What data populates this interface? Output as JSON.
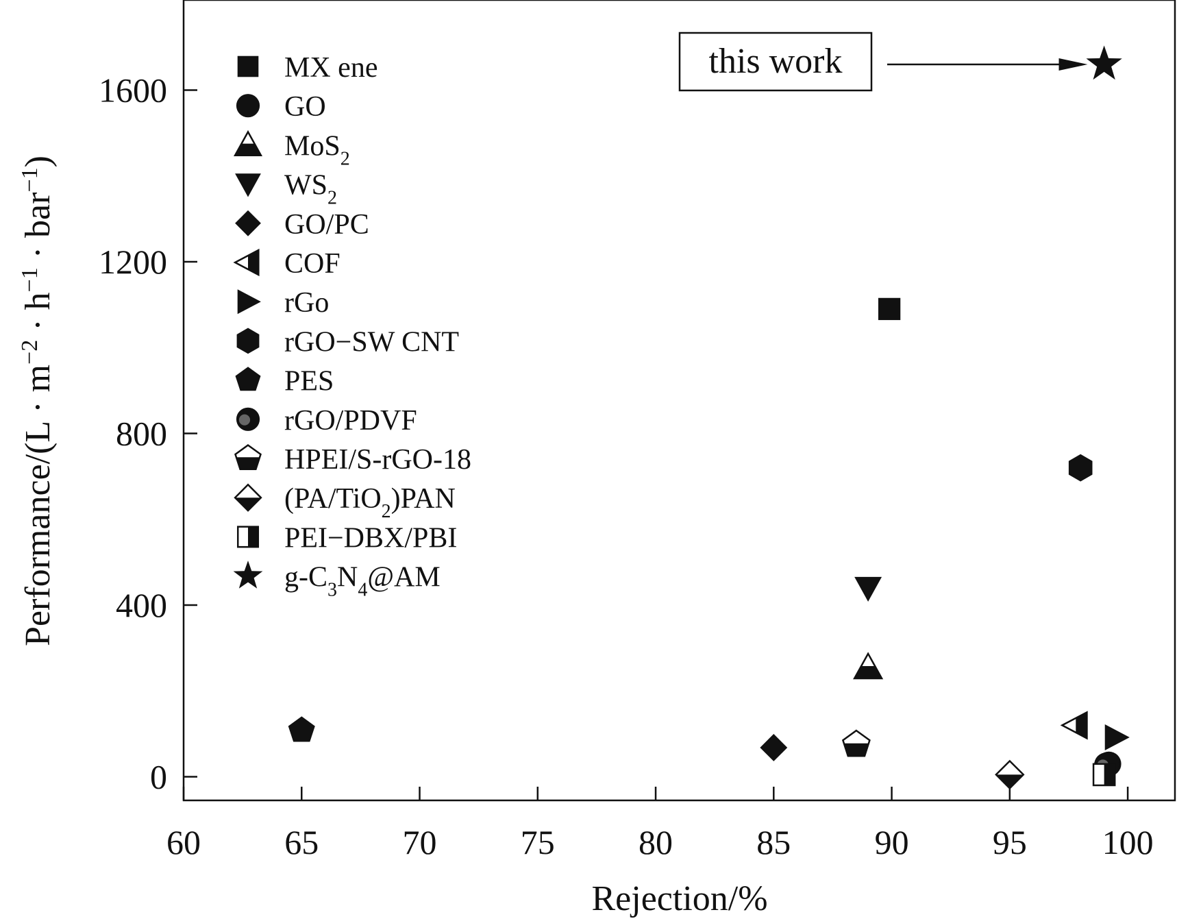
{
  "chart_data": {
    "type": "scatter",
    "xlabel": "Rejection/%",
    "ylabel": "Performance/(L · m−2 · h−1 · bar−1)",
    "ylabel_parts": {
      "a": "Performance/(L · m",
      "b": "−2",
      "c": " · h",
      "d": "−1",
      "e": " · bar",
      "f": "−1",
      "g": ")"
    },
    "xlim": [
      60,
      102
    ],
    "ylim": [
      -55,
      1810
    ],
    "xticks": [
      60,
      65,
      70,
      75,
      80,
      85,
      90,
      95,
      100
    ],
    "yticks": [
      0,
      400,
      800,
      1200,
      1600
    ],
    "grid": false,
    "legend_position": "top-left",
    "series": [
      {
        "name": "MX ene",
        "marker": "square",
        "points": [
          [
            89.9,
            1090
          ]
        ]
      },
      {
        "name": "GO",
        "marker": "circle",
        "points": [
          [
            99.2,
            30
          ]
        ]
      },
      {
        "name": "MoS2",
        "name_parts": [
          "MoS",
          "2",
          ""
        ],
        "marker": "triangle-up-half",
        "points": [
          [
            89.0,
            255
          ]
        ]
      },
      {
        "name": "WS2",
        "name_parts": [
          "WS",
          "2",
          ""
        ],
        "marker": "triangle-down",
        "points": [
          [
            89.0,
            440
          ]
        ]
      },
      {
        "name": "GO/PC",
        "marker": "diamond",
        "points": [
          [
            85.0,
            68
          ]
        ]
      },
      {
        "name": "COF",
        "marker": "triangle-left-half",
        "points": [
          [
            97.8,
            120
          ]
        ]
      },
      {
        "name": "rGo",
        "marker": "triangle-right",
        "points": [
          [
            99.5,
            92
          ]
        ]
      },
      {
        "name": "rGO−SW CNT",
        "marker": "hexagon",
        "points": [
          [
            98.0,
            720
          ]
        ]
      },
      {
        "name": "PES",
        "marker": "pentagon",
        "points": [
          [
            65.0,
            108
          ]
        ]
      },
      {
        "name": "rGO/PDVF",
        "marker": "circle-dot",
        "points": [
          [
            99.1,
            28
          ]
        ]
      },
      {
        "name": "HPEI/S-rGO-18",
        "marker": "pentagon-half",
        "points": [
          [
            88.5,
            75
          ]
        ]
      },
      {
        "name": "(PA/TiO2)PAN",
        "name_parts": [
          "(PA/TiO",
          "2",
          ")PAN"
        ],
        "marker": "diamond-half",
        "points": [
          [
            95.0,
            5
          ]
        ]
      },
      {
        "name": "PEI−DBX/PBI",
        "marker": "square-half",
        "points": [
          [
            99.0,
            5
          ]
        ]
      },
      {
        "name": "g-C3N4@AM",
        "name_parts": [
          "g-C",
          "3",
          "N",
          "4",
          "@AM"
        ],
        "marker": "star",
        "points": [
          [
            99.0,
            1660
          ]
        ]
      }
    ],
    "annotation": {
      "text": "this work",
      "target": [
        98.3,
        1660
      ]
    }
  },
  "colors": {
    "ink": "#111111",
    "background": "#ffffff",
    "grey_dot": "#666666"
  }
}
